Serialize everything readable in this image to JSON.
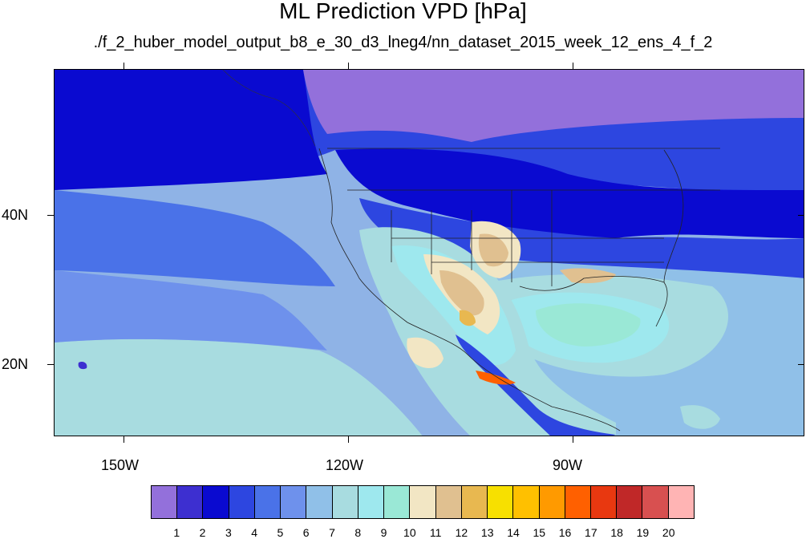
{
  "title": "ML Prediction VPD [hPa]",
  "subtitle": "./f_2_huber_model_output_b8_e_30_d3_lneg4/nn_dataset_2015_week_12_ens_4_f_2",
  "lat_labels": [
    "40N",
    "20N"
  ],
  "lon_labels": [
    "150W",
    "120W",
    "90W"
  ],
  "colorbar": {
    "labels": [
      "1",
      "2",
      "3",
      "4",
      "5",
      "6",
      "7",
      "8",
      "9",
      "10",
      "11",
      "12",
      "13",
      "14",
      "15",
      "16",
      "17",
      "18",
      "19",
      "20"
    ],
    "colors": [
      "#9370db",
      "#3d2fd0",
      "#0a0ad0",
      "#2d46e0",
      "#4a72e8",
      "#6e91ec",
      "#90c0e8",
      "#a8dce0",
      "#9ee8ee",
      "#9ae8d6",
      "#f2e6c4",
      "#e0c090",
      "#e8b850",
      "#f7e000",
      "#ffc000",
      "#ff9a00",
      "#ff6000",
      "#e83810",
      "#c02828",
      "#d85050",
      "#ffb4b4"
    ]
  }
}
